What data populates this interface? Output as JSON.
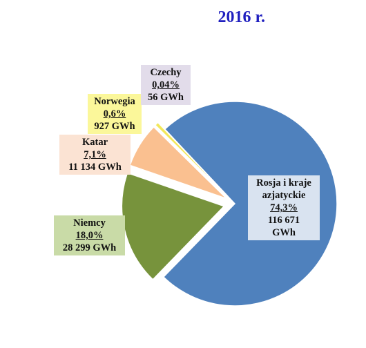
{
  "chart_data": {
    "type": "pie",
    "title": "2016 r.",
    "slices": [
      {
        "name": "Rosja i kraje azjatyckie",
        "percent_label": "74,3%",
        "value_label": "116 671 GWh",
        "value": 116671,
        "color": "#4f81bd"
      },
      {
        "name": "Niemcy",
        "percent_label": "18,0%",
        "value_label": "28 299 GWh",
        "value": 28299,
        "color": "#77933c"
      },
      {
        "name": "Katar",
        "percent_label": "7,1%",
        "value_label": "11 134 GWh",
        "value": 11134,
        "color": "#fac090"
      },
      {
        "name": "Norwegia",
        "percent_label": "0,6%",
        "value_label": "927 GWh",
        "value": 927,
        "color": "#f2e85a"
      },
      {
        "name": "Czechy",
        "percent_label": "0,04%",
        "value_label": "56 GWh",
        "value": 56,
        "color": "#8064a2"
      }
    ]
  },
  "labels": {
    "rosja": {
      "name": "Rosja i kraje azjatyckie",
      "pct": "74,3%",
      "val1": "116 671",
      "val2": "GWh"
    },
    "niemcy": {
      "name": "Niemcy",
      "pct": "18,0%",
      "val": "28 299 GWh"
    },
    "katar": {
      "name": "Katar",
      "pct": "7,1%",
      "val": "11 134 GWh"
    },
    "norwegia": {
      "name": "Norwegia",
      "pct": "0,6%",
      "val": "927 GWh"
    },
    "czechy": {
      "name": "Czechy",
      "pct": "0,04%",
      "val": "56 GWh"
    }
  }
}
